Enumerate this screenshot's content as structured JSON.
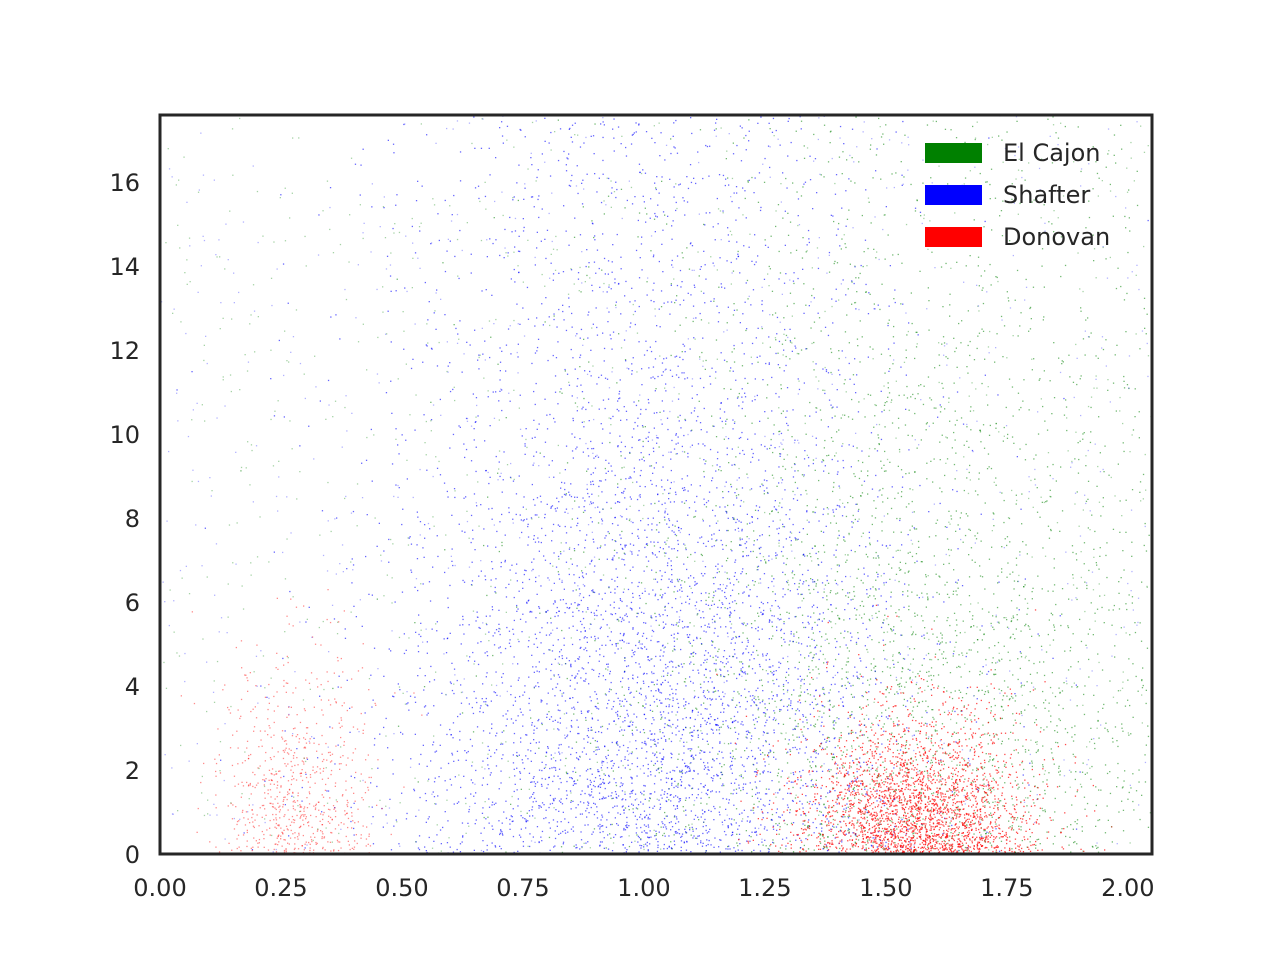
{
  "chart_data": {
    "type": "scatter",
    "title": "",
    "xlabel": "",
    "ylabel": "",
    "xlim": [
      0.0,
      2.05
    ],
    "ylim": [
      0,
      17.6
    ],
    "x_ticks": [
      "0.00",
      "0.25",
      "0.50",
      "0.75",
      "1.00",
      "1.25",
      "1.50",
      "1.75",
      "2.00"
    ],
    "y_ticks": [
      "0",
      "2",
      "4",
      "6",
      "8",
      "10",
      "12",
      "14",
      "16"
    ],
    "grid": false,
    "legend_position": "top-right",
    "marker": "tiny dots (very dense point cloud)",
    "series": [
      {
        "name": "El Cajon",
        "color": "#008000",
        "approx_center_x": 1.55,
        "approx_spread_x": 0.35,
        "density_peak_y": 0,
        "approx_y_extent": 17.6
      },
      {
        "name": "Shafter",
        "color": "#0000ff",
        "approx_center_x": 1.0,
        "approx_spread_x": 0.3,
        "density_peak_y": 0,
        "approx_y_extent": 17.6
      },
      {
        "name": "Donovan",
        "color": "#ff0000",
        "approx_center_x": 1.55,
        "approx_spread_x": 0.15,
        "density_peak_y": 0,
        "approx_y_extent": 6,
        "secondary_cluster_x": 0.3
      }
    ]
  }
}
